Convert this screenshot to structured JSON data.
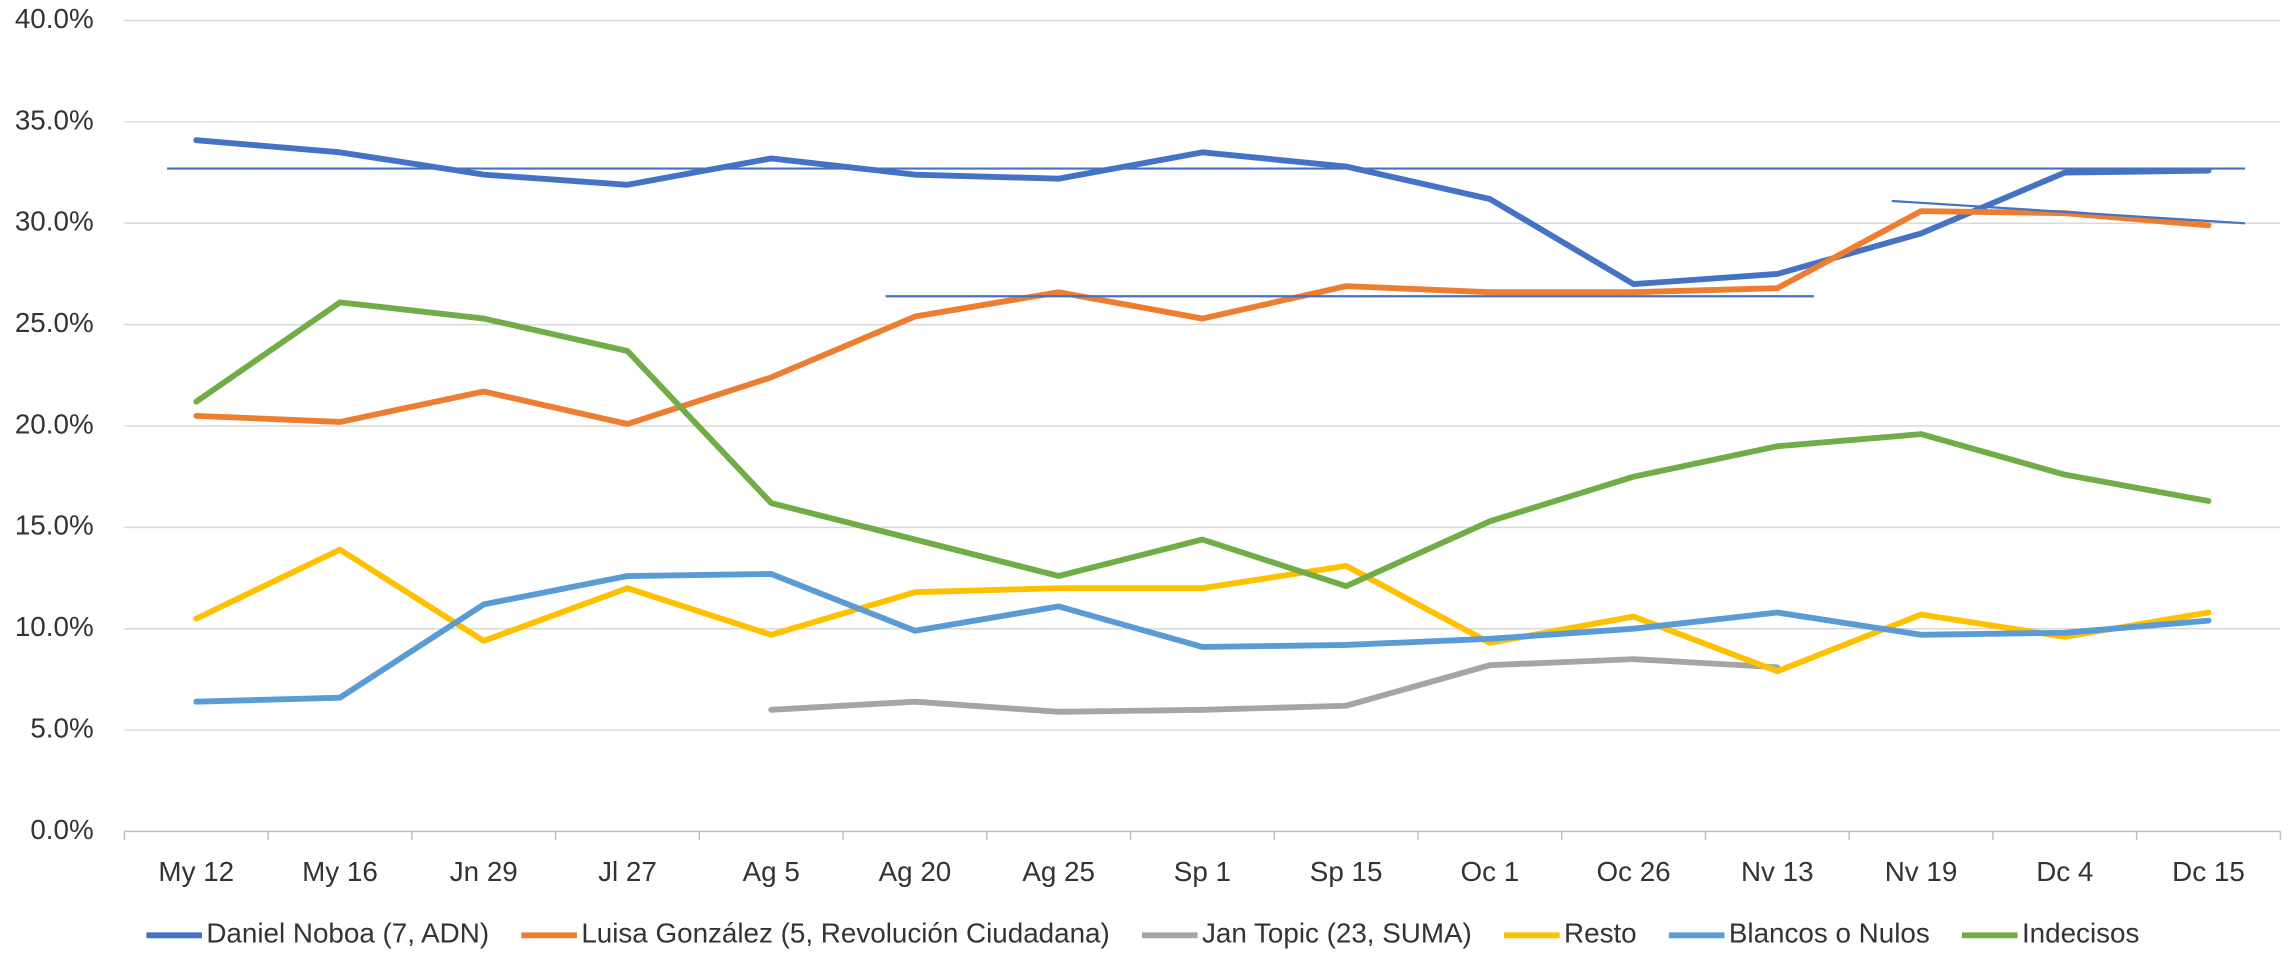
{
  "chart_data": {
    "type": "line",
    "categories": [
      "My 12",
      "My 16",
      "Jn 29",
      "Jl 27",
      "Ag 5",
      "Ag 20",
      "Ag 25",
      "Sp 1",
      "Sp 15",
      "Oc 1",
      "Oc 26",
      "Nv 13",
      "Nv 19",
      "Dc 4",
      "Dc 15"
    ],
    "series": [
      {
        "name": "Daniel Noboa (7, ADN)",
        "color": "#4472c4",
        "values": [
          34.1,
          33.5,
          32.4,
          31.9,
          33.2,
          32.4,
          32.2,
          33.5,
          32.8,
          31.2,
          27.0,
          27.5,
          29.5,
          32.5,
          32.6
        ]
      },
      {
        "name": "Luisa González (5, Revolución Ciudadana)",
        "color": "#ed7d31",
        "values": [
          20.5,
          20.2,
          21.7,
          20.1,
          22.4,
          25.4,
          26.6,
          25.3,
          26.9,
          26.6,
          26.6,
          26.8,
          30.6,
          30.5,
          29.9
        ]
      },
      {
        "name": "Jan Topic (23, SUMA)",
        "color": "#a5a5a5",
        "values": [
          null,
          null,
          null,
          null,
          6.0,
          6.4,
          5.9,
          6.0,
          6.2,
          8.2,
          8.5,
          8.1,
          null,
          null,
          null
        ]
      },
      {
        "name": "Resto",
        "color": "#ffc000",
        "values": [
          10.5,
          13.9,
          9.4,
          12.0,
          9.7,
          11.8,
          12.0,
          12.0,
          13.1,
          9.3,
          10.6,
          7.9,
          10.7,
          9.6,
          10.8
        ]
      },
      {
        "name": "Blancos o Nulos",
        "color": "#5b9bd5",
        "values": [
          6.4,
          6.6,
          11.2,
          12.6,
          12.7,
          9.9,
          11.1,
          9.1,
          9.2,
          9.5,
          10.0,
          10.8,
          9.7,
          9.8,
          10.4
        ]
      },
      {
        "name": "Indecisos",
        "color": "#70ad47",
        "values": [
          21.2,
          26.1,
          25.3,
          23.7,
          16.2,
          14.4,
          12.6,
          14.4,
          12.1,
          15.3,
          17.5,
          19.0,
          19.6,
          17.6,
          16.3
        ]
      }
    ],
    "reference_lines": [
      {
        "from": "My 12",
        "to": "Dc 15",
        "values": [
          32.7,
          32.7
        ],
        "color": "#4472c4"
      },
      {
        "from": "Ag 20",
        "to": "Nv 13",
        "values": [
          26.4,
          26.4
        ],
        "color": "#4472c4"
      },
      {
        "from": "Nv 19",
        "to": "Dc 15",
        "values": [
          31.1,
          30.0
        ],
        "color": "#4472c4"
      }
    ],
    "ylim": [
      0,
      40
    ],
    "yticks": [
      {
        "value": 0,
        "label": "0.0%"
      },
      {
        "value": 5,
        "label": "5.0%"
      },
      {
        "value": 10,
        "label": "10.0%"
      },
      {
        "value": 15,
        "label": "15.0%"
      },
      {
        "value": 20,
        "label": "20.0%"
      },
      {
        "value": 25,
        "label": "25.0%"
      },
      {
        "value": 30,
        "label": "30.0%"
      },
      {
        "value": 35,
        "label": "35.0%"
      },
      {
        "value": 40,
        "label": "40.0%"
      }
    ],
    "grid": true,
    "legend": "bottom"
  }
}
